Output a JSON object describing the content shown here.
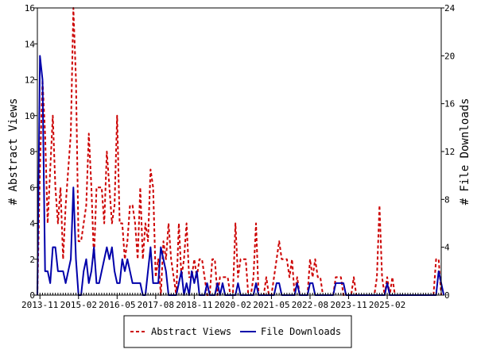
{
  "chart_data": {
    "type": "line",
    "title": "",
    "ylabel_left": "# Abstract Views",
    "ylabel_right": "# File Downloads",
    "ylim_left": [
      0,
      16
    ],
    "ylim_right": [
      0,
      24
    ],
    "yticks_left": [
      0,
      2,
      4,
      6,
      8,
      10,
      12,
      14,
      16
    ],
    "yticks_right": [
      0,
      4,
      8,
      12,
      16,
      20,
      24
    ],
    "x_tick_labels": [
      "2013-11",
      "2015-02",
      "2016-05",
      "2017-08",
      "2018-11",
      "2020-02",
      "2021-05",
      "2022-08",
      "2023-11",
      "2025-02"
    ],
    "x_start": "2013-10",
    "grid": false,
    "legend_placement": "bottom-center",
    "series": [
      {
        "name": "Abstract Views",
        "axis": "left",
        "color": "#cc0000",
        "style": "dashed",
        "values": [
          0,
          7,
          12,
          9,
          4,
          7,
          10,
          6,
          4,
          6,
          2,
          5,
          7,
          9,
          16,
          12,
          3,
          3,
          4,
          5,
          9,
          6,
          2,
          6,
          6,
          6,
          4,
          8,
          6,
          4,
          5,
          10,
          4,
          4,
          2,
          3,
          5,
          5,
          4,
          2,
          6,
          2,
          4,
          3,
          7,
          6,
          1,
          2,
          0,
          3,
          2,
          4,
          2,
          1,
          0,
          4,
          1,
          2,
          4,
          1,
          1,
          2,
          1,
          2,
          2,
          1,
          0,
          0,
          2,
          2,
          0,
          1,
          1,
          1,
          1,
          0,
          0,
          4,
          1,
          2,
          2,
          2,
          0,
          0,
          1,
          4,
          0,
          0,
          0,
          1,
          0,
          0,
          1,
          2,
          3,
          2,
          2,
          2,
          1,
          2,
          0,
          1,
          0,
          0,
          0,
          0,
          2,
          1,
          2,
          1,
          1,
          0,
          0,
          0,
          0,
          0,
          1,
          1,
          1,
          0,
          0,
          0,
          0,
          1,
          0,
          0,
          0,
          0,
          0,
          0,
          0,
          0,
          1,
          5,
          1,
          0,
          1,
          0,
          1,
          0,
          0,
          0,
          0,
          0,
          0,
          0,
          0,
          0,
          0,
          0,
          0,
          0,
          0,
          0,
          0,
          2,
          2,
          0
        ]
      },
      {
        "name": "File Downloads",
        "axis": "right",
        "color": "#0000aa",
        "style": "solid",
        "values": [
          0,
          20,
          18,
          2,
          2,
          1,
          4,
          4,
          2,
          2,
          2,
          1,
          2,
          3,
          9,
          3,
          0,
          0,
          2,
          3,
          1,
          2,
          4,
          1,
          1,
          2,
          3,
          4,
          3,
          4,
          2,
          1,
          1,
          3,
          2,
          3,
          2,
          1,
          1,
          1,
          1,
          0,
          0,
          2,
          4,
          1,
          1,
          1,
          4,
          3,
          2,
          0,
          0,
          0,
          0,
          1,
          2,
          0,
          1,
          0,
          2,
          1,
          2,
          0,
          0,
          0,
          1,
          0,
          0,
          0,
          1,
          0,
          1,
          0,
          0,
          0,
          0,
          0,
          1,
          0,
          0,
          0,
          0,
          0,
          0,
          1,
          0,
          0,
          0,
          0,
          0,
          0,
          0,
          1,
          1,
          0,
          0,
          0,
          0,
          0,
          0,
          1,
          0,
          0,
          0,
          0,
          1,
          1,
          0,
          0,
          0,
          0,
          0,
          0,
          0,
          0,
          1,
          1,
          1,
          1,
          0,
          0,
          0,
          0,
          0,
          0,
          0,
          0,
          0,
          0,
          0,
          0,
          0,
          0,
          0,
          0,
          1,
          0,
          0,
          0,
          0,
          0,
          0,
          0,
          0,
          0,
          0,
          0,
          0,
          0,
          0,
          0,
          0,
          0,
          0,
          0,
          2,
          1,
          0
        ]
      }
    ]
  }
}
